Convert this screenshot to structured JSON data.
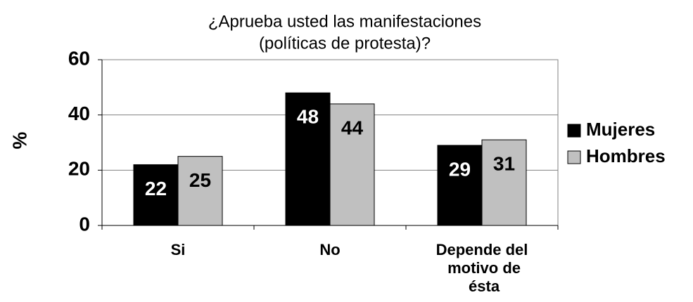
{
  "chart_data": {
    "type": "bar",
    "title": [
      "¿Aprueba usted las manifestaciones",
      "(políticas de protesta)?"
    ],
    "ylabel": "%",
    "categories": [
      "Si",
      "No",
      "Depende del motivo de ésta"
    ],
    "series": [
      {
        "name": "Mujeres",
        "color": "#000000",
        "values": [
          22,
          48,
          29
        ]
      },
      {
        "name": "Hombres",
        "color": "#c0c0c0",
        "values": [
          25,
          44,
          31
        ]
      }
    ],
    "ylim": [
      0,
      60
    ],
    "yticks": [
      0,
      20,
      40,
      60
    ],
    "grid": true,
    "legend": "right"
  }
}
